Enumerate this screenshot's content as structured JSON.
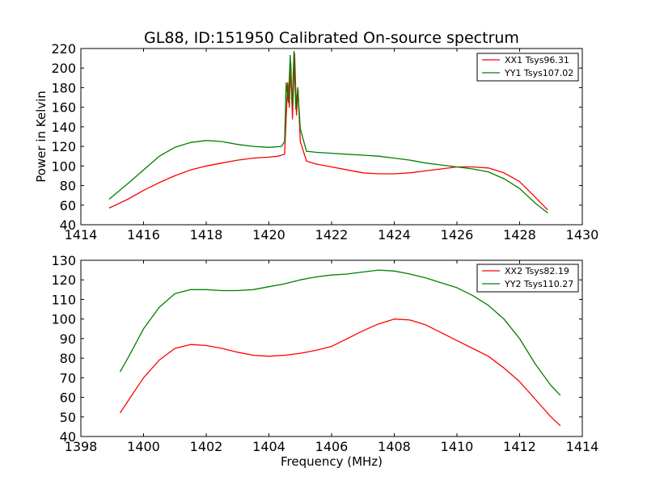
{
  "chart_data": [
    {
      "type": "line",
      "title": "GL88, ID:151950 Calibrated On-source spectrum",
      "xlabel": "",
      "ylabel": "Power in Kelvin",
      "xlim": [
        1414,
        1430
      ],
      "ylim": [
        40,
        220
      ],
      "xticks": [
        1414,
        1416,
        1418,
        1420,
        1422,
        1424,
        1426,
        1428,
        1430
      ],
      "yticks": [
        40,
        60,
        80,
        100,
        120,
        140,
        160,
        180,
        200,
        220
      ],
      "legend": "top-right",
      "grid": false,
      "series": [
        {
          "name": "XX1 Tsys96.31",
          "color": "#ff0000",
          "points": [
            [
              1414.9,
              57
            ],
            [
              1415.5,
              66
            ],
            [
              1416,
              75
            ],
            [
              1416.5,
              83
            ],
            [
              1417,
              90
            ],
            [
              1417.5,
              96
            ],
            [
              1418,
              100
            ],
            [
              1418.5,
              103
            ],
            [
              1419,
              106
            ],
            [
              1419.5,
              108
            ],
            [
              1420,
              109
            ],
            [
              1420.3,
              110
            ],
            [
              1420.5,
              112
            ],
            [
              1420.6,
              185
            ],
            [
              1420.65,
              160
            ],
            [
              1420.7,
              205
            ],
            [
              1420.75,
              148
            ],
            [
              1420.82,
              215
            ],
            [
              1420.88,
              152
            ],
            [
              1420.93,
              178
            ],
            [
              1421,
              125
            ],
            [
              1421.2,
              105
            ],
            [
              1421.5,
              102
            ],
            [
              1422,
              99
            ],
            [
              1422.5,
              96
            ],
            [
              1423,
              93
            ],
            [
              1423.5,
              92
            ],
            [
              1424,
              92
            ],
            [
              1424.5,
              93
            ],
            [
              1425,
              95
            ],
            [
              1425.5,
              97
            ],
            [
              1426,
              99
            ],
            [
              1426.5,
              99
            ],
            [
              1427,
              98
            ],
            [
              1427.5,
              93
            ],
            [
              1428,
              84
            ],
            [
              1428.5,
              68
            ],
            [
              1428.9,
              55
            ]
          ]
        },
        {
          "name": "YY1 Tsys107.02",
          "color": "#008000",
          "points": [
            [
              1414.9,
              66
            ],
            [
              1415.5,
              82
            ],
            [
              1416,
              96
            ],
            [
              1416.5,
              110
            ],
            [
              1417,
              119
            ],
            [
              1417.5,
              124
            ],
            [
              1418,
              126
            ],
            [
              1418.5,
              125
            ],
            [
              1419,
              122
            ],
            [
              1419.5,
              120
            ],
            [
              1420,
              119
            ],
            [
              1420.4,
              120
            ],
            [
              1420.5,
              125
            ],
            [
              1420.55,
              185
            ],
            [
              1420.62,
              165
            ],
            [
              1420.68,
              213
            ],
            [
              1420.74,
              160
            ],
            [
              1420.8,
              217
            ],
            [
              1420.86,
              158
            ],
            [
              1420.92,
              180
            ],
            [
              1421,
              138
            ],
            [
              1421.2,
              115
            ],
            [
              1421.5,
              114
            ],
            [
              1422,
              113
            ],
            [
              1422.5,
              112
            ],
            [
              1423,
              111
            ],
            [
              1423.5,
              110
            ],
            [
              1424,
              108
            ],
            [
              1424.5,
              106
            ],
            [
              1425,
              103
            ],
            [
              1425.5,
              101
            ],
            [
              1426,
              99
            ],
            [
              1426.5,
              97
            ],
            [
              1427,
              94
            ],
            [
              1427.5,
              87
            ],
            [
              1428,
              77
            ],
            [
              1428.5,
              62
            ],
            [
              1428.9,
              52
            ]
          ]
        }
      ]
    },
    {
      "type": "line",
      "title": "",
      "xlabel": "Frequency (MHz)",
      "ylabel": "",
      "xlim": [
        1398,
        1414
      ],
      "ylim": [
        40,
        130
      ],
      "xticks": [
        1398,
        1400,
        1402,
        1404,
        1406,
        1408,
        1410,
        1412,
        1414
      ],
      "yticks": [
        40,
        50,
        60,
        70,
        80,
        90,
        100,
        110,
        120,
        130
      ],
      "legend": "top-right",
      "grid": false,
      "series": [
        {
          "name": "XX2 Tsys82.19",
          "color": "#ff0000",
          "points": [
            [
              1399.25,
              52
            ],
            [
              1399.5,
              58
            ],
            [
              1400,
              70
            ],
            [
              1400.5,
              79
            ],
            [
              1401,
              85
            ],
            [
              1401.5,
              87
            ],
            [
              1402,
              86.5
            ],
            [
              1402.5,
              85
            ],
            [
              1403,
              83
            ],
            [
              1403.5,
              81.5
            ],
            [
              1404,
              81
            ],
            [
              1404.5,
              81.5
            ],
            [
              1405,
              82.5
            ],
            [
              1405.5,
              84
            ],
            [
              1406,
              86
            ],
            [
              1406.5,
              90
            ],
            [
              1407,
              94
            ],
            [
              1407.5,
              97.5
            ],
            [
              1408,
              100
            ],
            [
              1408.5,
              99.5
            ],
            [
              1409,
              97
            ],
            [
              1409.5,
              93
            ],
            [
              1410,
              89
            ],
            [
              1410.5,
              85
            ],
            [
              1411,
              81
            ],
            [
              1411.5,
              75
            ],
            [
              1412,
              68
            ],
            [
              1412.5,
              59
            ],
            [
              1413,
              50
            ],
            [
              1413.3,
              45.5
            ]
          ]
        },
        {
          "name": "YY2 Tsys110.27",
          "color": "#008000",
          "points": [
            [
              1399.25,
              73
            ],
            [
              1399.5,
              80
            ],
            [
              1400,
              95
            ],
            [
              1400.5,
              106
            ],
            [
              1401,
              113
            ],
            [
              1401.5,
              115
            ],
            [
              1402,
              115
            ],
            [
              1402.5,
              114.5
            ],
            [
              1403,
              114.5
            ],
            [
              1403.5,
              115
            ],
            [
              1404,
              116.5
            ],
            [
              1404.5,
              118
            ],
            [
              1405,
              120
            ],
            [
              1405.5,
              121.5
            ],
            [
              1406,
              122.5
            ],
            [
              1406.5,
              123
            ],
            [
              1407,
              124
            ],
            [
              1407.5,
              125
            ],
            [
              1408,
              124.5
            ],
            [
              1408.5,
              123
            ],
            [
              1409,
              121
            ],
            [
              1409.5,
              118.5
            ],
            [
              1410,
              116
            ],
            [
              1410.5,
              112
            ],
            [
              1411,
              107
            ],
            [
              1411.5,
              100
            ],
            [
              1412,
              90
            ],
            [
              1412.5,
              77
            ],
            [
              1413,
              66
            ],
            [
              1413.3,
              61
            ]
          ]
        }
      ]
    }
  ]
}
